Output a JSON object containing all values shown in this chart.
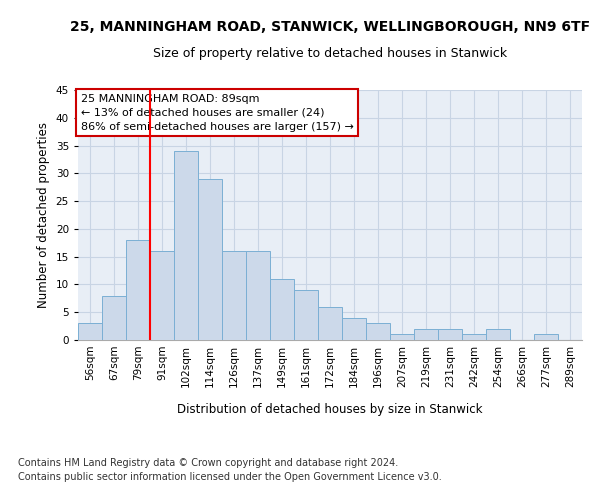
{
  "title1": "25, MANNINGHAM ROAD, STANWICK, WELLINGBOROUGH, NN9 6TF",
  "title2": "Size of property relative to detached houses in Stanwick",
  "xlabel": "Distribution of detached houses by size in Stanwick",
  "ylabel": "Number of detached properties",
  "footnote1": "Contains HM Land Registry data © Crown copyright and database right 2024.",
  "footnote2": "Contains public sector information licensed under the Open Government Licence v3.0.",
  "bar_labels": [
    "56sqm",
    "67sqm",
    "79sqm",
    "91sqm",
    "102sqm",
    "114sqm",
    "126sqm",
    "137sqm",
    "149sqm",
    "161sqm",
    "172sqm",
    "184sqm",
    "196sqm",
    "207sqm",
    "219sqm",
    "231sqm",
    "242sqm",
    "254sqm",
    "266sqm",
    "277sqm",
    "289sqm"
  ],
  "bar_values": [
    3,
    8,
    18,
    16,
    34,
    29,
    16,
    16,
    11,
    9,
    6,
    4,
    3,
    1,
    2,
    2,
    1,
    2,
    0,
    1,
    0
  ],
  "bar_color": "#ccd9ea",
  "bar_edge_color": "#7bafd4",
  "grid_color": "#c8d4e4",
  "background_color": "#e8eef6",
  "red_line_index": 3,
  "ylim": [
    0,
    45
  ],
  "yticks": [
    0,
    5,
    10,
    15,
    20,
    25,
    30,
    35,
    40,
    45
  ],
  "annotation_lines": [
    "25 MANNINGHAM ROAD: 89sqm",
    "← 13% of detached houses are smaller (24)",
    "86% of semi-detached houses are larger (157) →"
  ],
  "annotation_box_color": "#ffffff",
  "annotation_box_edge_color": "#cc0000",
  "title1_fontsize": 10,
  "title2_fontsize": 9,
  "axis_label_fontsize": 8.5,
  "tick_fontsize": 7.5,
  "footnote_fontsize": 7,
  "annotation_fontsize": 8
}
